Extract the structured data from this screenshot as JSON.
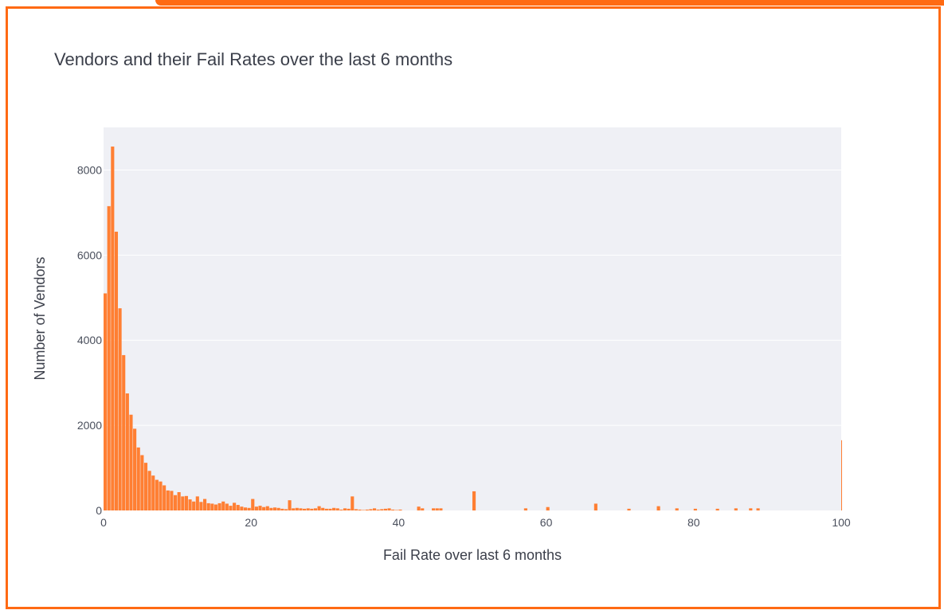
{
  "chart_data": {
    "type": "bar",
    "title": "Vendors and their Fail Rates over the last 6 months",
    "xlabel": "Fail Rate over last 6 months",
    "ylabel": "Number of Vendors",
    "xlim": [
      0,
      100
    ],
    "ylim": [
      0,
      9000
    ],
    "x_ticks": [
      0,
      20,
      40,
      60,
      80,
      100
    ],
    "y_ticks": [
      0,
      2000,
      4000,
      6000,
      8000
    ],
    "bin_width": 0.5,
    "grid": true,
    "bar_color": "#ff7f33",
    "plot_background": "#eff0f5",
    "bins_start": [
      0,
      0.5,
      1,
      1.5,
      2,
      2.5,
      3,
      3.5,
      4,
      4.5,
      5,
      5.5,
      6,
      6.5,
      7,
      7.5,
      8,
      8.5,
      9,
      9.5,
      10,
      10.5,
      11,
      11.5,
      12,
      12.5,
      13,
      13.5,
      14,
      14.5,
      15,
      15.5,
      16,
      16.5,
      17,
      17.5,
      18,
      18.5,
      19,
      19.5,
      20,
      20.5,
      21,
      21.5,
      22,
      22.5,
      23,
      23.5,
      24,
      24.5,
      25,
      25.5,
      26,
      26.5,
      27,
      27.5,
      28,
      28.5,
      29,
      29.5,
      30,
      30.5,
      31,
      31.5,
      32,
      32.5,
      33,
      33.5,
      34,
      34.5,
      35,
      35.5,
      36,
      36.5,
      37,
      37.5,
      38,
      38.5,
      39,
      39.5,
      40,
      42.5,
      43,
      44.5,
      45,
      45.5,
      50,
      57,
      60,
      66.5,
      71,
      75,
      77.5,
      80,
      83,
      85.5,
      87.5,
      88.5,
      100
    ],
    "values": [
      5100,
      7150,
      8550,
      6550,
      4750,
      3650,
      2750,
      2250,
      1920,
      1480,
      1300,
      1120,
      930,
      820,
      720,
      680,
      590,
      470,
      460,
      360,
      430,
      330,
      340,
      260,
      210,
      330,
      200,
      270,
      170,
      160,
      140,
      170,
      210,
      160,
      110,
      180,
      130,
      90,
      70,
      60,
      270,
      90,
      110,
      80,
      100,
      60,
      70,
      60,
      40,
      30,
      240,
      50,
      60,
      50,
      40,
      50,
      40,
      50,
      100,
      60,
      40,
      40,
      60,
      50,
      20,
      50,
      40,
      330,
      30,
      20,
      10,
      20,
      30,
      50,
      20,
      30,
      40,
      50,
      20,
      10,
      20,
      90,
      50,
      50,
      50,
      50,
      450,
      50,
      80,
      160,
      40,
      100,
      50,
      40,
      40,
      50,
      50,
      50,
      1650
    ]
  }
}
